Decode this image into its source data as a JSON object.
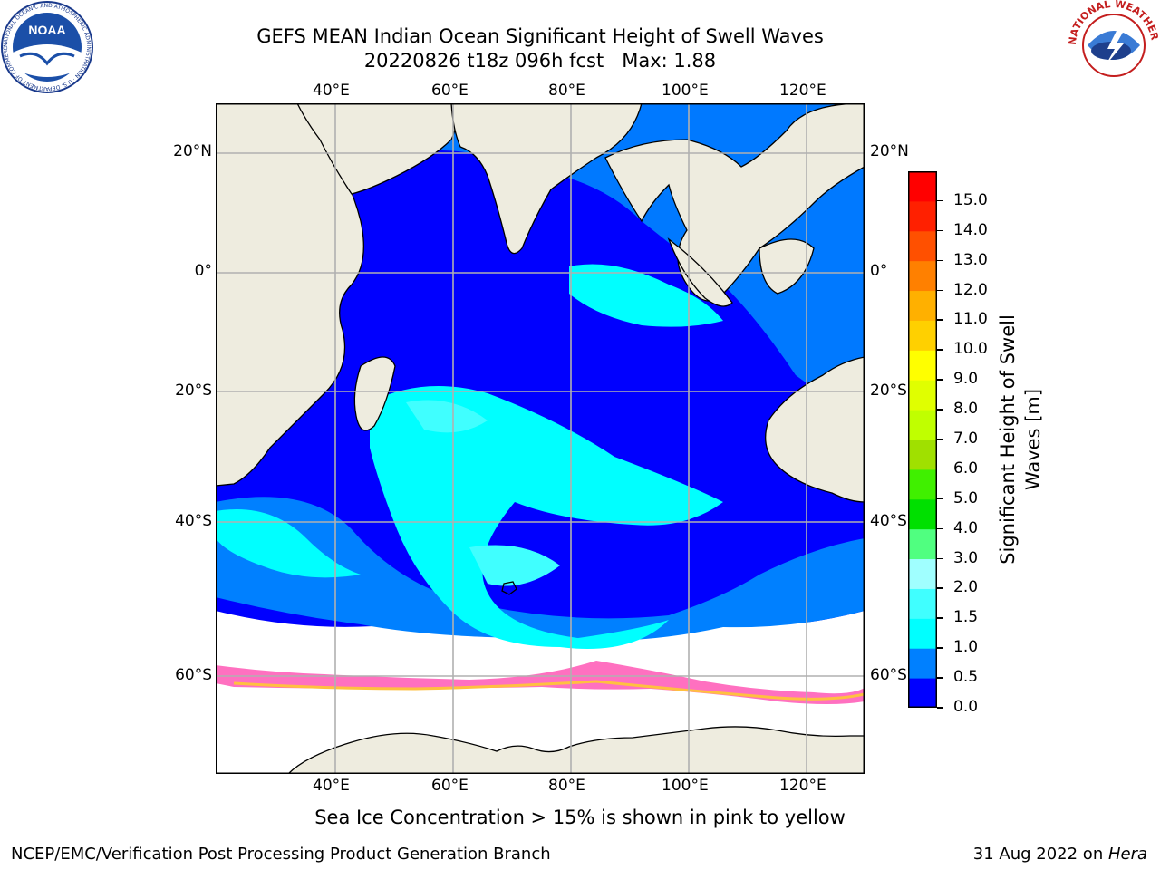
{
  "header": {
    "title": "GEFS MEAN Indian Ocean Significant Height of Swell Waves",
    "subtitle": "20220826 t18z 096h fcst   Max: 1.88"
  },
  "map": {
    "region": "Indian Ocean",
    "lon_range": [
      20,
      130
    ],
    "lat_range": [
      -70,
      28
    ],
    "lon_ticks": [
      "40°E",
      "60°E",
      "80°E",
      "100°E",
      "120°E"
    ],
    "lat_ticks": [
      "20°N",
      "0°",
      "20°S",
      "40°S",
      "60°S"
    ],
    "land_color": "#eeecdf",
    "ocean_no_data_color": "#ffffff",
    "grid_color": "#b0b0b0"
  },
  "colorbar": {
    "title_line1": "Significant Height of Swell",
    "title_line2": "Waves [m]",
    "levels": [
      "0.0",
      "0.5",
      "1.0",
      "1.5",
      "2.0",
      "3.0",
      "4.0",
      "5.0",
      "6.0",
      "7.0",
      "8.0",
      "9.0",
      "10.0",
      "11.0",
      "12.0",
      "13.0",
      "14.0",
      "15.0"
    ],
    "colors": [
      "#0000ff",
      "#0080ff",
      "#00ffff",
      "#40ffff",
      "#a0ffff",
      "#50ff80",
      "#00e000",
      "#40f000",
      "#a0e000",
      "#c0ff00",
      "#e0ff00",
      "#ffff00",
      "#ffd000",
      "#ffb000",
      "#ff8000",
      "#ff5000",
      "#ff2000",
      "#ff0000"
    ]
  },
  "caption": "Sea Ice Concentration > 15% is shown in pink to yellow",
  "footer": {
    "left": "NCEP/EMC/Verification Post Processing Product Generation Branch",
    "right_date": "31 Aug 2022 on ",
    "right_host": "Hera"
  },
  "logos": {
    "left": "NOAA",
    "left_ring": "NATIONAL OCEANIC AND ATMOSPHERIC ADMINISTRATION · U.S. DEPARTMENT OF COMMERCE",
    "right_ring": "NATIONAL WEATHER SERVICE"
  }
}
